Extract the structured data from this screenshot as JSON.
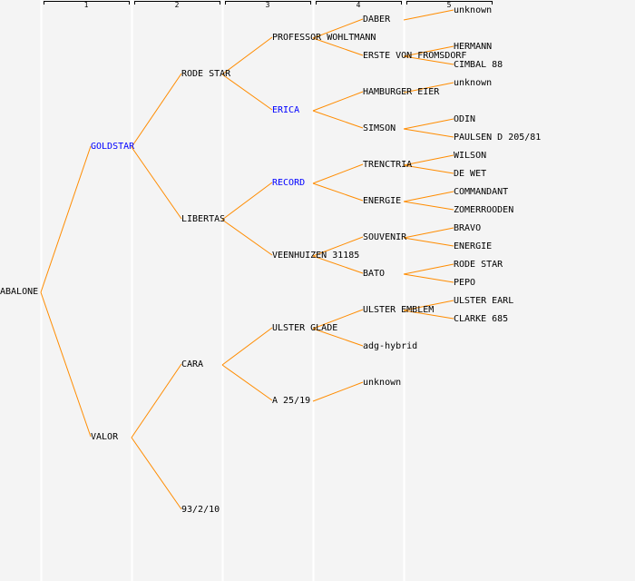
{
  "colors": {
    "line": "#ff8c00",
    "highlight": "#0000ff",
    "text": "#000000",
    "background": "#f4f4f4",
    "separator": "#ffffff"
  },
  "generations": [
    "1",
    "2",
    "3",
    "4",
    "5"
  ],
  "nodes": [
    {
      "name": "ABALONE",
      "gen": 0,
      "parent": null
    },
    {
      "name": "GOLDSTAR",
      "gen": 1,
      "parent": 0,
      "highlight": true
    },
    {
      "name": "RODE STAR",
      "gen": 2,
      "parent": 1
    },
    {
      "name": "PROFESSOR WOHLTMANN",
      "gen": 3,
      "parent": 2
    },
    {
      "name": "DABER",
      "gen": 4,
      "parent": 3
    },
    {
      "name": "unknown",
      "gen": 5,
      "parent": 4
    },
    {
      "name": "ERSTE VON FROMSDORF",
      "gen": 4,
      "parent": 3
    },
    {
      "name": "HERMANN",
      "gen": 5,
      "parent": 6
    },
    {
      "name": "CIMBAL 88",
      "gen": 5,
      "parent": 6
    },
    {
      "name": "ERICA",
      "gen": 3,
      "parent": 2,
      "highlight": true
    },
    {
      "name": "HAMBURGER EIER",
      "gen": 4,
      "parent": 9
    },
    {
      "name": "unknown",
      "gen": 5,
      "parent": 10
    },
    {
      "name": "SIMSON",
      "gen": 4,
      "parent": 9
    },
    {
      "name": "ODIN",
      "gen": 5,
      "parent": 12
    },
    {
      "name": "PAULSEN D 205/81",
      "gen": 5,
      "parent": 12
    },
    {
      "name": "LIBERTAS",
      "gen": 2,
      "parent": 1
    },
    {
      "name": "RECORD",
      "gen": 3,
      "parent": 15,
      "highlight": true
    },
    {
      "name": "TRENCTRIA",
      "gen": 4,
      "parent": 16
    },
    {
      "name": "WILSON",
      "gen": 5,
      "parent": 17
    },
    {
      "name": "DE WET",
      "gen": 5,
      "parent": 17
    },
    {
      "name": "ENERGIE",
      "gen": 4,
      "parent": 16
    },
    {
      "name": "COMMANDANT",
      "gen": 5,
      "parent": 20
    },
    {
      "name": "ZOMERROODEN",
      "gen": 5,
      "parent": 20
    },
    {
      "name": "VEENHUIZEN 31185",
      "gen": 3,
      "parent": 15
    },
    {
      "name": "SOUVENIR",
      "gen": 4,
      "parent": 23
    },
    {
      "name": "BRAVO",
      "gen": 5,
      "parent": 24
    },
    {
      "name": "ENERGIE",
      "gen": 5,
      "parent": 24
    },
    {
      "name": "BATO",
      "gen": 4,
      "parent": 23
    },
    {
      "name": "RODE STAR",
      "gen": 5,
      "parent": 27
    },
    {
      "name": "PEPO",
      "gen": 5,
      "parent": 27
    },
    {
      "name": "VALOR",
      "gen": 1,
      "parent": 0
    },
    {
      "name": "CARA",
      "gen": 2,
      "parent": 30
    },
    {
      "name": "ULSTER GLADE",
      "gen": 3,
      "parent": 31
    },
    {
      "name": "ULSTER EMBLEM",
      "gen": 4,
      "parent": 32
    },
    {
      "name": "ULSTER EARL",
      "gen": 5,
      "parent": 33
    },
    {
      "name": "CLARKE 685",
      "gen": 5,
      "parent": 33
    },
    {
      "name": "adg-hybrid",
      "gen": 4,
      "parent": 32
    },
    {
      "name": "A 25/19",
      "gen": 3,
      "parent": 31
    },
    {
      "name": "unknown",
      "gen": 4,
      "parent": 37
    },
    {
      "name": "93/2/10",
      "gen": 2,
      "parent": 30
    }
  ]
}
